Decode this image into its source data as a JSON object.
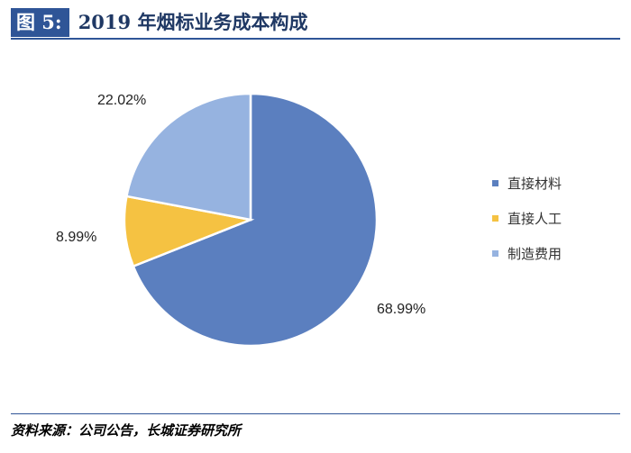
{
  "header": {
    "figure_label": "图 5:",
    "title": "2019 年烟标业务成本构成"
  },
  "source": "资料来源：公司公告，长城证券研究所",
  "chart_data": {
    "type": "pie",
    "title": "2019 年烟标业务成本构成",
    "categories": [
      "直接材料",
      "直接人工",
      "制造费用"
    ],
    "values": [
      68.99,
      8.99,
      22.02
    ],
    "labels": [
      "68.99%",
      "8.99%",
      "22.02%"
    ],
    "colors": [
      "#5b7fbf",
      "#f5c242",
      "#96b3e0"
    ],
    "legend_position": "right"
  }
}
